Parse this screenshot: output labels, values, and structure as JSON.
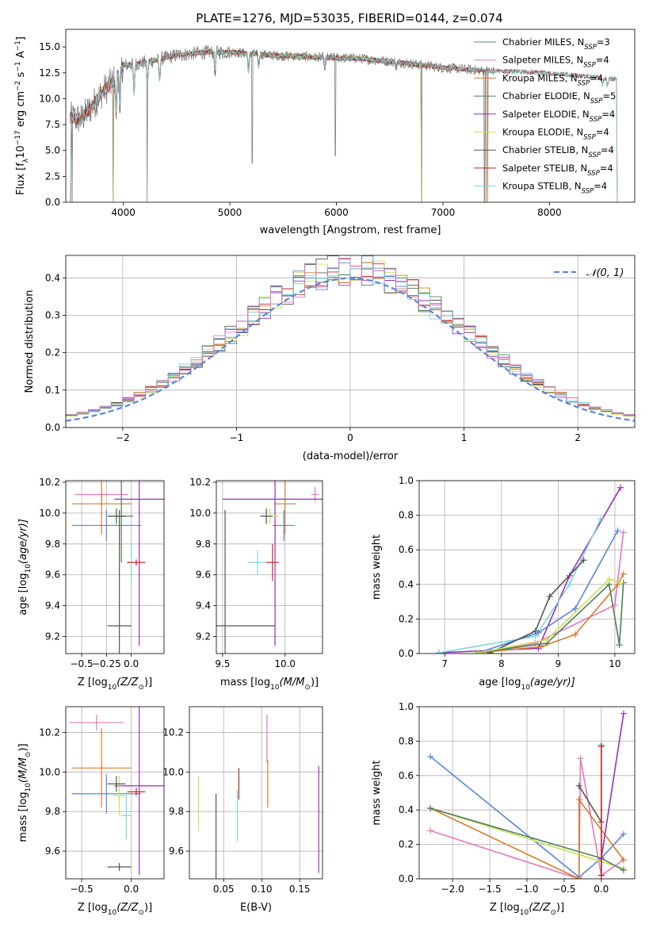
{
  "figure": {
    "title": "PLATE=1276, MJD=53035, FIBERID=0144, z=0.074"
  },
  "colors": {
    "chabrier_miles": "#5b8f66",
    "salpeter_miles": "#e377c2",
    "kroupa_miles": "#d67c2c",
    "chabrier_elodie": "#4f7f5a",
    "salpeter_elodie": "#9a2fbf",
    "kroupa_elodie": "#c9e05a",
    "chabrier_stelib": "#555555",
    "salpeter_stelib": "#c0281f",
    "kroupa_stelib": "#7fd6dc",
    "royal": "#5b86dc",
    "data": "#808080"
  },
  "chart_data": [
    {
      "id": "spectrum",
      "type": "line",
      "xlabel": "wavelength [Angstrom, rest frame]",
      "ylabel_parts": [
        "Flux [f",
        "λ",
        "10",
        "−17",
        " erg cm",
        "−2",
        " s",
        "−1",
        " A",
        "−1",
        "]"
      ],
      "xlim": [
        3460,
        8800
      ],
      "ylim": [
        0,
        16.7
      ],
      "xticks": [
        4000,
        5000,
        6000,
        7000,
        8000
      ],
      "yticks": [
        0.0,
        2.5,
        5.0,
        7.5,
        10.0,
        12.5,
        15.0
      ],
      "legend": [
        {
          "label": "Chabrier MILES, N",
          "sub": "SSP",
          "suffix": "=3",
          "color": "#5b8f66"
        },
        {
          "label": "Salpeter MILES, N",
          "sub": "SSP",
          "suffix": "=4",
          "color": "#e377c2"
        },
        {
          "label": "Kroupa MILES, N",
          "sub": "SSP",
          "suffix": "=4",
          "color": "#d67c2c"
        },
        {
          "label": "Chabrier ELODIE, N",
          "sub": "SSP",
          "suffix": "=5",
          "color": "#4f7f5a"
        },
        {
          "label": "Salpeter ELODIE, N",
          "sub": "SSP",
          "suffix": "=4",
          "color": "#9a2fbf"
        },
        {
          "label": "Kroupa ELODIE, N",
          "sub": "SSP",
          "suffix": "=4",
          "color": "#c9e05a"
        },
        {
          "label": "Chabrier STELIB, N",
          "sub": "SSP",
          "suffix": "=4",
          "color": "#555555"
        },
        {
          "label": "Salpeter STELIB, N",
          "sub": "SSP",
          "suffix": "=4",
          "color": "#c0281f"
        },
        {
          "label": "Kroupa STELIB, N",
          "sub": "SSP",
          "suffix": "=4",
          "color": "#7fd6dc"
        }
      ],
      "continuum": [
        [
          3500,
          8.2
        ],
        [
          3600,
          8.0
        ],
        [
          3700,
          9.2
        ],
        [
          3800,
          10.6
        ],
        [
          3900,
          11.6
        ],
        [
          4000,
          13.2
        ],
        [
          4200,
          13.5
        ],
        [
          4500,
          14.2
        ],
        [
          4800,
          14.5
        ],
        [
          5000,
          14.5
        ],
        [
          5400,
          14.2
        ],
        [
          5800,
          14.0
        ],
        [
          6200,
          13.9
        ],
        [
          6600,
          13.5
        ],
        [
          7000,
          13.0
        ],
        [
          7400,
          12.7
        ],
        [
          7800,
          12.6
        ],
        [
          8200,
          12.3
        ],
        [
          8600,
          11.9
        ]
      ],
      "absorption_lines": [
        [
          3933,
          8.6
        ],
        [
          3968,
          9.2
        ],
        [
          4101,
          10.5
        ],
        [
          4226,
          11.4
        ],
        [
          4340,
          11.8
        ],
        [
          4861,
          12.5
        ],
        [
          5175,
          12.6
        ],
        [
          5270,
          13.1
        ],
        [
          5892,
          12.9
        ],
        [
          6563,
          12.9
        ],
        [
          8498,
          11.4
        ],
        [
          8542,
          11.2
        ],
        [
          8662,
          11.3
        ]
      ],
      "spikes": [
        [
          3520,
          0.0
        ],
        [
          3905,
          0.0
        ],
        [
          4225,
          0.0
        ],
        [
          5210,
          3.8
        ],
        [
          5990,
          4.5
        ],
        [
          6800,
          0.0
        ],
        [
          7390,
          0.0
        ],
        [
          7420,
          0.0
        ]
      ],
      "data_range": [
        3500,
        7480
      ],
      "model_ranges": [
        [
          3500,
          7410
        ],
        [
          3500,
          7410
        ],
        [
          3500,
          7410
        ],
        [
          3900,
          6800
        ],
        [
          3900,
          6800
        ],
        [
          3900,
          6800
        ],
        [
          3500,
          8640
        ],
        [
          3500,
          8640
        ],
        [
          3500,
          8640
        ]
      ]
    },
    {
      "id": "residuals",
      "type": "area",
      "xlabel": "(data-model)/error",
      "ylabel": "Normed distribution",
      "xlim": [
        -2.5,
        2.5
      ],
      "ylim": [
        0,
        0.46
      ],
      "xticks": [
        -2,
        -1,
        0,
        1,
        2
      ],
      "xticklabels": [
        "−2",
        "−1",
        "0",
        "1",
        "2"
      ],
      "yticks": [
        0.0,
        0.1,
        0.2,
        0.3,
        0.4
      ],
      "legend": [
        {
          "label": "𝒩(0, 1)",
          "color": "#5b86dc"
        }
      ],
      "bin_edges": [
        -2.5,
        2.5
      ],
      "n_bins": 50,
      "gaussian": {
        "mean": 0,
        "sigma": 1
      }
    },
    {
      "id": "age_vs_Z",
      "type": "scatter",
      "xlabel": "Z [log",
      "xlabel_sub": "10",
      "xlabel_tail": "(Z/Z",
      "xlabel_sun": "⊙",
      "xlabel_end": ")]",
      "ylabel": "age  [log",
      "ylabel_sub": "10",
      "ylabel_tail": "(age/yr)]",
      "xlim": [
        -0.66,
        0.33
      ],
      "ylim": [
        9.09,
        10.21
      ],
      "xticks": [
        -0.5,
        -0.25,
        0.0
      ],
      "xticklabels": [
        "−0.5",
        "−0.25",
        "0.0"
      ],
      "yticks": [
        9.2,
        9.4,
        9.6,
        9.8,
        10.0,
        10.2
      ],
      "points": [
        {
          "x": -0.3,
          "y": 10.12,
          "xerr": 0.27,
          "yerr": 0.05,
          "color": "#e377c2"
        },
        {
          "x": -0.3,
          "y": 10.06,
          "xerr": 0.3,
          "yerr": 0.2,
          "color": "#d67c2c"
        },
        {
          "x": -0.25,
          "y": 9.92,
          "xerr": 0.35,
          "yerr": 0.1,
          "color": "#5b86dc"
        },
        {
          "x": 0.08,
          "y": 10.09,
          "xerr": 0.25,
          "yerr": 0.95,
          "color": "#9a2fbf"
        },
        {
          "x": -0.1,
          "y": 9.98,
          "xerr": 0.06,
          "yerr": 0.28,
          "color": "#c9e05a"
        },
        {
          "x": -0.1,
          "y": 9.98,
          "xerr": 0.12,
          "yerr": 0.3,
          "color": "#4f7f5a"
        },
        {
          "x": -0.15,
          "y": 9.98,
          "xerr": 0.09,
          "yerr": 0.05,
          "color": "#555555"
        },
        {
          "x": 0.0,
          "y": 9.68,
          "xerr": 0.05,
          "yerr": 0.12,
          "color": "#7fd6dc"
        },
        {
          "x": 0.05,
          "y": 9.68,
          "xerr": 0.09,
          "yerr": 0.02,
          "color": "#c0281f"
        },
        {
          "x": -0.12,
          "y": 9.27,
          "xerr": 0.12,
          "yerr": 0.75,
          "color": "#555555"
        }
      ]
    },
    {
      "id": "age_vs_mass",
      "type": "scatter",
      "xlabel": "mass [log",
      "xlabel_sub": "10",
      "xlabel_tail": "(M/M",
      "xlabel_sun": "⊙",
      "xlabel_end": ")]",
      "xlim": [
        9.45,
        10.3
      ],
      "ylim": [
        9.09,
        10.21
      ],
      "xticks": [
        9.5,
        10.0
      ],
      "xticklabels": [
        "9.5",
        "10.0"
      ],
      "yticks": [
        9.2,
        9.4,
        9.6,
        9.8,
        10.0,
        10.2
      ],
      "points": [
        {
          "x": 10.24,
          "y": 10.12,
          "xerr": 0.03,
          "yerr": 0.05,
          "color": "#e377c2"
        },
        {
          "x": 10.0,
          "y": 10.06,
          "xerr": 0.09,
          "yerr": 0.2,
          "color": "#d67c2c"
        },
        {
          "x": 9.99,
          "y": 9.92,
          "xerr": 0.09,
          "yerr": 0.1,
          "color": "#5b86dc"
        },
        {
          "x": 9.92,
          "y": 10.09,
          "xerr": 0.42,
          "yerr": 0.95,
          "color": "#9a2fbf"
        },
        {
          "x": 9.88,
          "y": 9.98,
          "xerr": 0.07,
          "yerr": 0.05,
          "color": "#c9e05a"
        },
        {
          "x": 9.85,
          "y": 9.98,
          "xerr": 0.05,
          "yerr": 0.05,
          "color": "#555555"
        },
        {
          "x": 9.78,
          "y": 9.68,
          "xerr": 0.08,
          "yerr": 0.08,
          "color": "#7fd6dc"
        },
        {
          "x": 9.9,
          "y": 9.68,
          "xerr": 0.05,
          "yerr": 0.12,
          "color": "#c0281f"
        },
        {
          "x": 9.52,
          "y": 9.27,
          "xerr": 0.4,
          "yerr": 0.75,
          "color": "#555555"
        }
      ]
    },
    {
      "id": "weight_vs_age",
      "type": "line",
      "xlabel": "age  [log",
      "xlabel_sub": "10",
      "xlabel_tail": "(age/yr)]",
      "ylabel": "mass weight",
      "xlim": [
        6.55,
        10.35
      ],
      "ylim": [
        0,
        1.0
      ],
      "xticks": [
        7,
        8,
        9,
        10
      ],
      "yticks": [
        0.0,
        0.2,
        0.4,
        0.6,
        0.8,
        1.0
      ],
      "series": [
        {
          "color": "#9a2fbf",
          "x": [
            6.9,
            8.65,
            9.2,
            10.1
          ],
          "y": [
            0.005,
            0.03,
            0.45,
            0.96
          ]
        },
        {
          "color": "#7fd6dc",
          "x": [
            6.9,
            8.6,
            9.2,
            9.75
          ],
          "y": [
            0.005,
            0.1,
            0.4,
            0.78
          ]
        },
        {
          "color": "#5b86dc",
          "x": [
            7.6,
            8.65,
            9.3,
            10.05
          ],
          "y": [
            0.005,
            0.12,
            0.26,
            0.71
          ]
        },
        {
          "color": "#555555",
          "x": [
            7.8,
            8.6,
            8.85,
            9.45
          ],
          "y": [
            0.005,
            0.13,
            0.33,
            0.54
          ]
        },
        {
          "color": "#e377c2",
          "x": [
            7.6,
            8.6,
            10.0,
            10.15
          ],
          "y": [
            0.005,
            0.06,
            0.28,
            0.7
          ]
        },
        {
          "color": "#d67c2c",
          "x": [
            7.6,
            8.7,
            9.3,
            10.05,
            10.15
          ],
          "y": [
            0.005,
            0.04,
            0.11,
            0.4,
            0.46
          ]
        },
        {
          "color": "#4f7f5a",
          "x": [
            7.6,
            8.8,
            9.9,
            10.08,
            10.15
          ],
          "y": [
            0.005,
            0.06,
            0.4,
            0.05,
            0.41
          ]
        },
        {
          "color": "#c9e05a",
          "x": [
            7.6,
            8.8,
            9.9,
            10.1
          ],
          "y": [
            0.005,
            0.08,
            0.43,
            0.41
          ]
        }
      ]
    },
    {
      "id": "mass_vs_Z",
      "type": "scatter",
      "xlabel": "Z [log",
      "xlabel_sub": "10",
      "xlabel_tail": "(Z/Z",
      "xlabel_sun": "⊙",
      "xlabel_end": ")]",
      "ylabel": "mass [log",
      "ylabel_sub": "10",
      "ylabel_tail": "(M/M",
      "ylabel_sun": "⊙",
      "ylabel_end": ")]",
      "xlim": [
        -0.66,
        0.33
      ],
      "ylim": [
        9.46,
        10.33
      ],
      "xticks": [
        -0.5,
        0.0
      ],
      "xticklabels": [
        "−0.5",
        "0.0"
      ],
      "yticks": [
        9.6,
        9.8,
        10.0,
        10.2
      ],
      "points": [
        {
          "x": -0.35,
          "y": 10.25,
          "xerr": 0.27,
          "yerr": 0.04,
          "color": "#e377c2"
        },
        {
          "x": -0.3,
          "y": 10.02,
          "xerr": 0.3,
          "yerr": 0.2,
          "color": "#d67c2c"
        },
        {
          "x": -0.25,
          "y": 9.89,
          "xerr": 0.35,
          "yerr": 0.1,
          "color": "#5b86dc"
        },
        {
          "x": 0.08,
          "y": 9.93,
          "xerr": 0.25,
          "yerr": 0.45,
          "color": "#9a2fbf"
        },
        {
          "x": -0.12,
          "y": 9.88,
          "xerr": 0.06,
          "yerr": 0.1,
          "color": "#c9e05a"
        },
        {
          "x": -0.15,
          "y": 9.94,
          "xerr": 0.09,
          "yerr": 0.04,
          "color": "#555555"
        },
        {
          "x": 0.05,
          "y": 9.9,
          "xerr": 0.09,
          "yerr": 0.02,
          "color": "#c0281f"
        },
        {
          "x": -0.05,
          "y": 9.78,
          "xerr": 0.05,
          "yerr": 0.12,
          "color": "#7fd6dc"
        },
        {
          "x": -0.12,
          "y": 9.52,
          "xerr": 0.12,
          "yerr": 0.02,
          "color": "#555555"
        }
      ]
    },
    {
      "id": "mass_vs_ebv",
      "type": "scatter",
      "xlabel": "E(B-V)",
      "xlim": [
        0.005,
        0.18
      ],
      "ylim": [
        9.46,
        10.33
      ],
      "xticks": [
        0.05,
        0.1,
        0.15
      ],
      "xticklabels": [
        "0.05",
        "0.10",
        "0.15"
      ],
      "yticks": [
        9.6,
        9.8,
        10.0,
        10.2
      ],
      "points": [
        {
          "x": 0.107,
          "y": 10.17,
          "xerr": 0.0,
          "yerr": 0.12,
          "color": "#e377c2"
        },
        {
          "x": 0.017,
          "y": 9.84,
          "xerr": 0.0,
          "yerr": 0.14,
          "color": "#c9e05a"
        },
        {
          "x": 0.04,
          "y": 9.64,
          "xerr": 0.0,
          "yerr": 0.25,
          "color": "#555555"
        },
        {
          "x": 0.068,
          "y": 9.78,
          "xerr": 0.0,
          "yerr": 0.13,
          "color": "#7fd6dc"
        },
        {
          "x": 0.07,
          "y": 9.94,
          "xerr": 0.0,
          "yerr": 0.08,
          "color": "#c0281f"
        },
        {
          "x": 0.108,
          "y": 9.94,
          "xerr": 0.0,
          "yerr": 0.12,
          "color": "#d67c2c"
        },
        {
          "x": 0.175,
          "y": 9.76,
          "xerr": 0.0,
          "yerr": 0.27,
          "color": "#9a2fbf"
        }
      ]
    },
    {
      "id": "weight_vs_Z",
      "type": "line",
      "xlabel": "Z [log",
      "xlabel_sub": "10",
      "xlabel_tail": "(Z/Z",
      "xlabel_sun": "⊙",
      "xlabel_end": ")]",
      "ylabel": "mass weight",
      "xlim": [
        -2.45,
        0.45
      ],
      "ylim": [
        0,
        1.0
      ],
      "xticks": [
        -2.0,
        -1.5,
        -1.0,
        -0.5,
        0.0
      ],
      "xticklabels": [
        "−2.0",
        "−1.5",
        "−1.0",
        "−0.5",
        "0.0"
      ],
      "yticks": [
        0.0,
        0.2,
        0.4,
        0.6,
        0.8,
        1.0
      ],
      "series": [
        {
          "color": "#5b86dc",
          "x": [
            -2.3,
            -0.3,
            0.0,
            0.3
          ],
          "y": [
            0.71,
            0.01,
            0.12,
            0.26
          ]
        },
        {
          "color": "#e377c2",
          "x": [
            -2.3,
            -0.3,
            -0.28,
            0.0,
            0.3
          ],
          "y": [
            0.28,
            0.0,
            0.7,
            0.02,
            0.11
          ]
        },
        {
          "color": "#d67c2c",
          "x": [
            -2.3,
            -0.3,
            -0.3,
            0.3
          ],
          "y": [
            0.41,
            0.0,
            0.46,
            0.11
          ]
        },
        {
          "color": "#c9e05a",
          "x": [
            -2.3,
            0.0,
            0.3
          ],
          "y": [
            0.41,
            0.1,
            0.06
          ]
        },
        {
          "color": "#4f7f5a",
          "x": [
            -2.3,
            0.0,
            0.3
          ],
          "y": [
            0.41,
            0.12,
            0.05
          ]
        },
        {
          "color": "#9a2fbf",
          "x": [
            -0.0,
            0.0,
            0.3
          ],
          "y": [
            0.02,
            0.12,
            0.96
          ]
        },
        {
          "color": "#7fd6dc",
          "x": [
            0.0,
            0.0
          ],
          "y": [
            0.02,
            0.78
          ]
        },
        {
          "color": "#555555",
          "x": [
            -0.3,
            0.0,
            0.0
          ],
          "y": [
            0.54,
            0.33,
            0.77
          ]
        },
        {
          "color": "#c0281f",
          "x": [
            0.0,
            0.0
          ],
          "y": [
            0.02,
            0.77
          ]
        }
      ]
    }
  ]
}
